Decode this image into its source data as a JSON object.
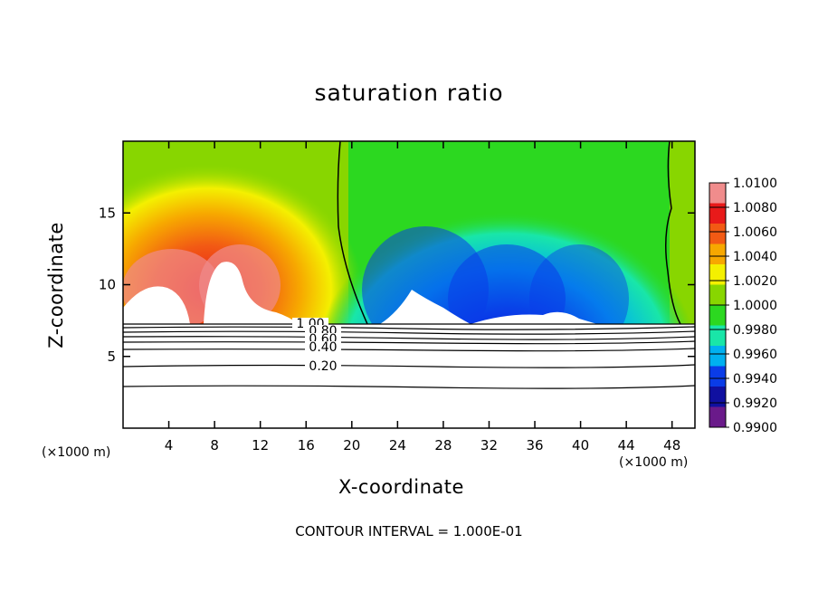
{
  "chart_data": {
    "type": "heatmap",
    "title": "saturation ratio",
    "xlabel": "X-coordinate",
    "ylabel": "Z-coordinate",
    "x_unit": "(×1000 m)",
    "x_unit_right": "(×1000 m)",
    "xlim": [
      0,
      50
    ],
    "ylim": [
      0,
      20
    ],
    "x_ticks": [
      4,
      8,
      12,
      16,
      20,
      24,
      28,
      32,
      36,
      40,
      44,
      48
    ],
    "y_ticks": [
      5,
      10,
      15
    ],
    "colorbar": {
      "levels": [
        "1.0100",
        "1.0080",
        "1.0060",
        "1.0040",
        "1.0020",
        "1.0000",
        "0.9980",
        "0.9960",
        "0.9940",
        "0.9920",
        "0.9900"
      ],
      "colors": [
        "#f08c8c",
        "#e81a1a",
        "#f25a14",
        "#f7a800",
        "#f4f000",
        "#88d600",
        "#2cd820",
        "#19e6a8",
        "#00b0f0",
        "#0a3ce8",
        "#1010a0",
        "#6a1a8a"
      ]
    },
    "contour_labels": [
      "1.00",
      "0.80",
      "0.60",
      "0.40",
      "0.20"
    ],
    "contour_interval": "CONTOUR INTERVAL = 1.000E-01",
    "grid": false
  },
  "colors": {
    "frame": "#000000",
    "background": "#ffffff"
  }
}
